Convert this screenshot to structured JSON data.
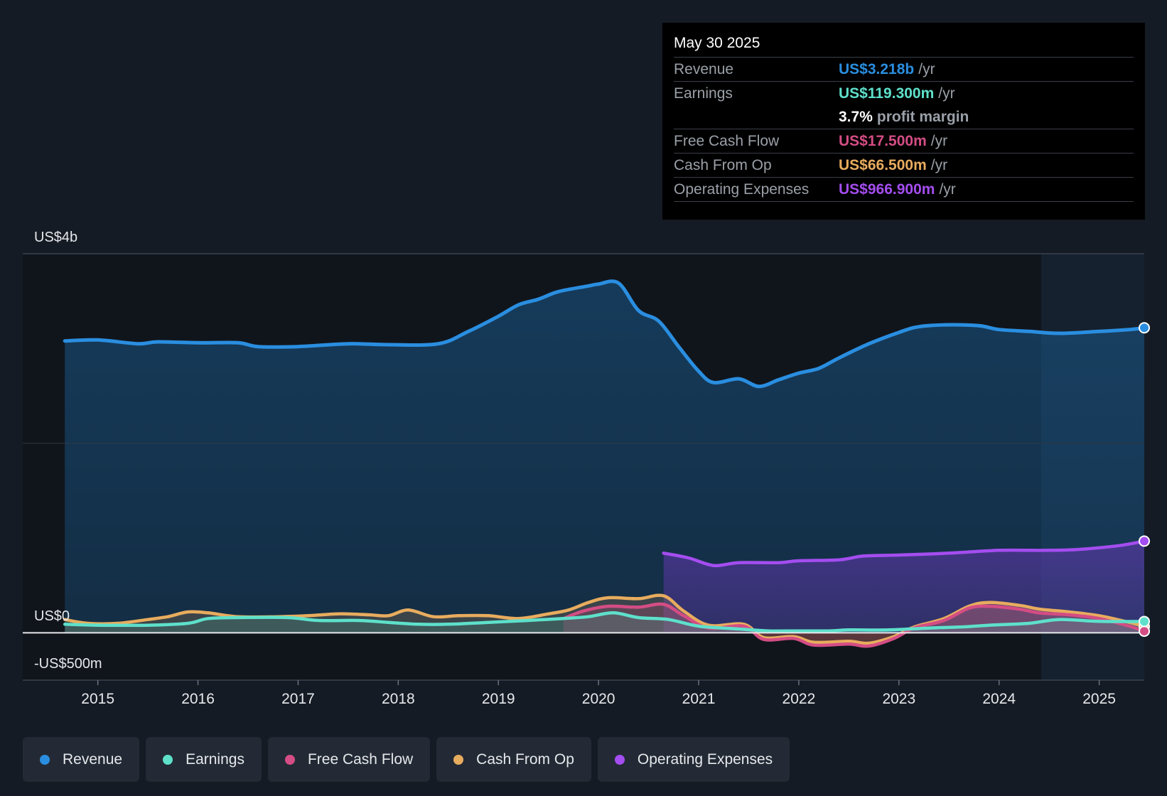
{
  "tooltip": {
    "date": "May 30 2025",
    "rows": [
      {
        "label": "Revenue",
        "value": "US$3.218b",
        "unit": "/yr",
        "color": "#2a8ee0"
      },
      {
        "label": "Earnings",
        "value": "US$119.300m",
        "unit": "/yr",
        "color": "#5ee0cb"
      },
      {
        "label": "",
        "value": "3.7%",
        "unit": "profit margin",
        "color": "#ffffff"
      },
      {
        "label": "Free Cash Flow",
        "value": "US$17.500m",
        "unit": "/yr",
        "color": "#d44d84"
      },
      {
        "label": "Cash From Op",
        "value": "US$66.500m",
        "unit": "/yr",
        "color": "#e8ac5e"
      },
      {
        "label": "Operating Expenses",
        "value": "US$966.900m",
        "unit": "/yr",
        "color": "#a44df0"
      }
    ]
  },
  "chart_data": {
    "type": "area",
    "y_labels": [
      "US$4b",
      "US$0",
      "-US$500m"
    ],
    "ylim": [
      -500,
      4000
    ],
    "xlim": [
      2014.25,
      2025.45
    ],
    "x_ticks": [
      "2015",
      "2016",
      "2017",
      "2018",
      "2019",
      "2020",
      "2021",
      "2022",
      "2023",
      "2024",
      "2025"
    ],
    "forecast_start": 2024.42,
    "series": [
      {
        "name": "Revenue",
        "color": "#2a8ee0",
        "points": [
          [
            2014.67,
            3080
          ],
          [
            2015.0,
            3090
          ],
          [
            2015.4,
            3050
          ],
          [
            2015.6,
            3070
          ],
          [
            2016.0,
            3060
          ],
          [
            2016.4,
            3060
          ],
          [
            2016.6,
            3020
          ],
          [
            2017.0,
            3020
          ],
          [
            2017.5,
            3050
          ],
          [
            2017.9,
            3040
          ],
          [
            2018.4,
            3050
          ],
          [
            2018.7,
            3180
          ],
          [
            2019.0,
            3340
          ],
          [
            2019.2,
            3460
          ],
          [
            2019.4,
            3520
          ],
          [
            2019.6,
            3600
          ],
          [
            2019.9,
            3660
          ],
          [
            2020.0,
            3680
          ],
          [
            2020.2,
            3690
          ],
          [
            2020.4,
            3400
          ],
          [
            2020.6,
            3290
          ],
          [
            2020.8,
            3020
          ],
          [
            2021.0,
            2760
          ],
          [
            2021.15,
            2640
          ],
          [
            2021.4,
            2680
          ],
          [
            2021.6,
            2600
          ],
          [
            2021.8,
            2670
          ],
          [
            2022.0,
            2740
          ],
          [
            2022.2,
            2790
          ],
          [
            2022.4,
            2900
          ],
          [
            2022.7,
            3050
          ],
          [
            2023.0,
            3170
          ],
          [
            2023.2,
            3230
          ],
          [
            2023.5,
            3250
          ],
          [
            2023.8,
            3240
          ],
          [
            2024.0,
            3200
          ],
          [
            2024.3,
            3180
          ],
          [
            2024.6,
            3160
          ],
          [
            2025.0,
            3180
          ],
          [
            2025.3,
            3200
          ],
          [
            2025.45,
            3218
          ]
        ]
      },
      {
        "name": "Operating Expenses",
        "color": "#a44df0",
        "points": [
          [
            2020.65,
            840
          ],
          [
            2020.9,
            790
          ],
          [
            2021.15,
            710
          ],
          [
            2021.4,
            740
          ],
          [
            2021.8,
            740
          ],
          [
            2022.0,
            760
          ],
          [
            2022.4,
            770
          ],
          [
            2022.65,
            810
          ],
          [
            2023.0,
            820
          ],
          [
            2023.5,
            840
          ],
          [
            2024.0,
            870
          ],
          [
            2024.5,
            870
          ],
          [
            2024.8,
            880
          ],
          [
            2025.2,
            920
          ],
          [
            2025.45,
            967
          ]
        ]
      },
      {
        "name": "Cash From Op",
        "color": "#e8ac5e",
        "points": [
          [
            2014.67,
            140
          ],
          [
            2014.9,
            100
          ],
          [
            2015.2,
            100
          ],
          [
            2015.5,
            140
          ],
          [
            2015.7,
            170
          ],
          [
            2015.9,
            220
          ],
          [
            2016.1,
            210
          ],
          [
            2016.4,
            170
          ],
          [
            2016.8,
            170
          ],
          [
            2017.1,
            180
          ],
          [
            2017.4,
            200
          ],
          [
            2017.7,
            190
          ],
          [
            2017.9,
            180
          ],
          [
            2018.1,
            240
          ],
          [
            2018.35,
            170
          ],
          [
            2018.6,
            180
          ],
          [
            2018.9,
            180
          ],
          [
            2019.2,
            150
          ],
          [
            2019.5,
            200
          ],
          [
            2019.7,
            240
          ],
          [
            2019.9,
            320
          ],
          [
            2020.1,
            370
          ],
          [
            2020.4,
            360
          ],
          [
            2020.65,
            390
          ],
          [
            2020.85,
            230
          ],
          [
            2021.1,
            80
          ],
          [
            2021.45,
            90
          ],
          [
            2021.65,
            -50
          ],
          [
            2021.95,
            -40
          ],
          [
            2022.15,
            -100
          ],
          [
            2022.5,
            -90
          ],
          [
            2022.7,
            -110
          ],
          [
            2022.95,
            -40
          ],
          [
            2023.15,
            60
          ],
          [
            2023.45,
            150
          ],
          [
            2023.7,
            280
          ],
          [
            2023.9,
            320
          ],
          [
            2024.2,
            290
          ],
          [
            2024.4,
            250
          ],
          [
            2024.7,
            220
          ],
          [
            2025.0,
            180
          ],
          [
            2025.3,
            110
          ],
          [
            2025.45,
            66
          ]
        ]
      },
      {
        "name": "Free Cash Flow",
        "color": "#d44d84",
        "points": [
          [
            2019.65,
            150
          ],
          [
            2019.85,
            230
          ],
          [
            2020.1,
            280
          ],
          [
            2020.4,
            270
          ],
          [
            2020.65,
            300
          ],
          [
            2020.85,
            180
          ],
          [
            2021.1,
            50
          ],
          [
            2021.45,
            70
          ],
          [
            2021.65,
            -70
          ],
          [
            2021.95,
            -60
          ],
          [
            2022.15,
            -130
          ],
          [
            2022.5,
            -120
          ],
          [
            2022.7,
            -140
          ],
          [
            2022.95,
            -60
          ],
          [
            2023.15,
            50
          ],
          [
            2023.45,
            130
          ],
          [
            2023.7,
            260
          ],
          [
            2023.9,
            280
          ],
          [
            2024.2,
            250
          ],
          [
            2024.4,
            210
          ],
          [
            2024.7,
            190
          ],
          [
            2025.0,
            150
          ],
          [
            2025.3,
            70
          ],
          [
            2025.45,
            17
          ]
        ]
      },
      {
        "name": "Earnings",
        "color": "#5ee0cb",
        "points": [
          [
            2014.67,
            90
          ],
          [
            2015.0,
            80
          ],
          [
            2015.5,
            80
          ],
          [
            2015.9,
            100
          ],
          [
            2016.1,
            150
          ],
          [
            2016.4,
            160
          ],
          [
            2016.9,
            160
          ],
          [
            2017.2,
            130
          ],
          [
            2017.6,
            130
          ],
          [
            2017.9,
            110
          ],
          [
            2018.2,
            90
          ],
          [
            2018.5,
            90
          ],
          [
            2018.9,
            110
          ],
          [
            2019.3,
            130
          ],
          [
            2019.65,
            150
          ],
          [
            2019.9,
            170
          ],
          [
            2020.15,
            210
          ],
          [
            2020.4,
            160
          ],
          [
            2020.7,
            140
          ],
          [
            2021.0,
            70
          ],
          [
            2021.4,
            40
          ],
          [
            2021.7,
            20
          ],
          [
            2022.0,
            20
          ],
          [
            2022.3,
            20
          ],
          [
            2022.5,
            30
          ],
          [
            2022.9,
            30
          ],
          [
            2023.3,
            50
          ],
          [
            2023.6,
            60
          ],
          [
            2023.9,
            80
          ],
          [
            2024.3,
            100
          ],
          [
            2024.6,
            140
          ],
          [
            2025.0,
            120
          ],
          [
            2025.45,
            119
          ]
        ]
      }
    ]
  },
  "legend": [
    {
      "label": "Revenue",
      "color": "#2a8ee0"
    },
    {
      "label": "Earnings",
      "color": "#5ee0cb"
    },
    {
      "label": "Free Cash Flow",
      "color": "#d44d84"
    },
    {
      "label": "Cash From Op",
      "color": "#e8ac5e"
    },
    {
      "label": "Operating Expenses",
      "color": "#a44df0"
    }
  ]
}
